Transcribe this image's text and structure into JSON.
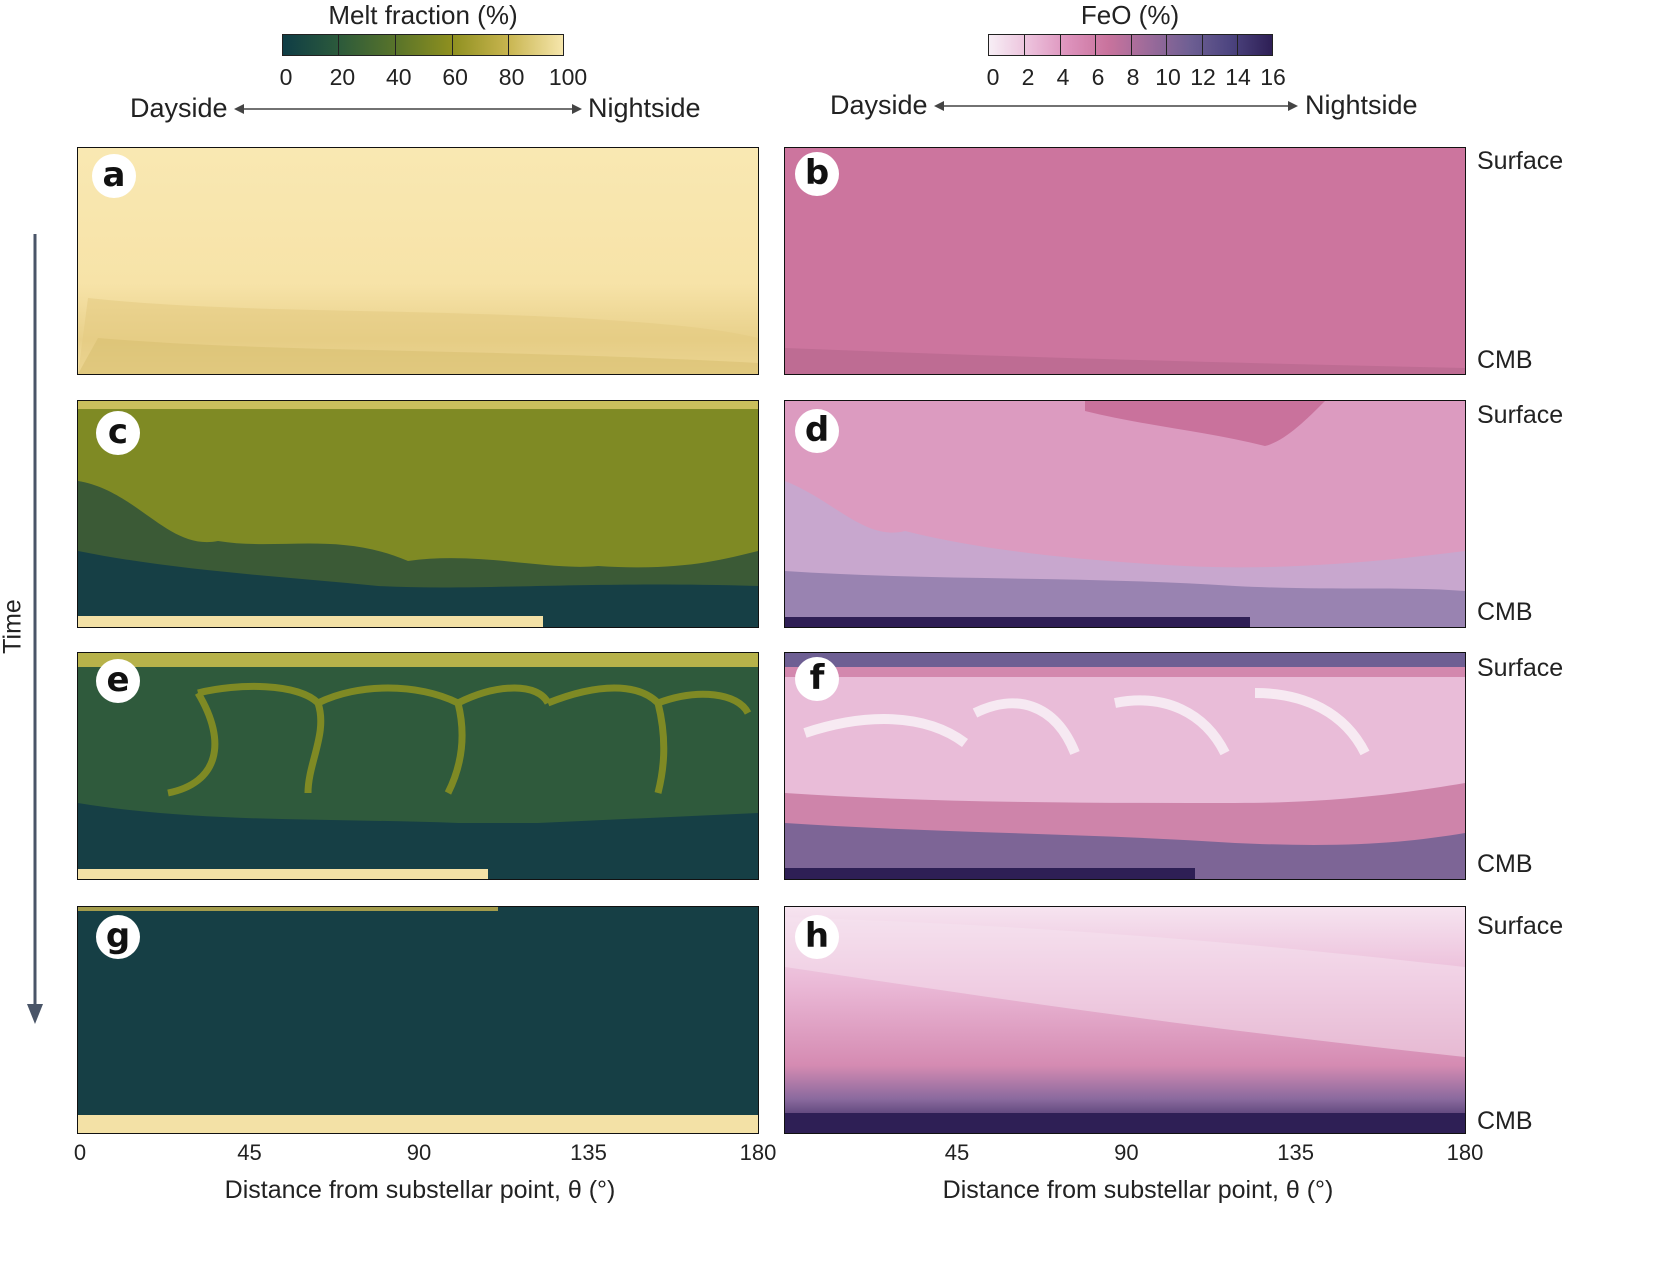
{
  "melt_colorbar": {
    "title": "Melt fraction (%)",
    "ticks": [
      "0",
      "20",
      "40",
      "60",
      "80",
      "100"
    ],
    "colors": [
      "#0f3d46",
      "#2c5a3b",
      "#58732a",
      "#8d8f1f",
      "#c7b44e",
      "#f6e6ac"
    ]
  },
  "feo_colorbar": {
    "title": "FeO (%)",
    "ticks": [
      "0",
      "2",
      "4",
      "6",
      "8",
      "10",
      "12",
      "14",
      "16"
    ],
    "colors": [
      "#f7eef5",
      "#ecc1dc",
      "#dd92bc",
      "#c9739d",
      "#9a6a9a",
      "#6e5f93",
      "#4d4580",
      "#2e1f55"
    ]
  },
  "direction": {
    "dayside": "Dayside",
    "nightside": "Nightside"
  },
  "time_label": "Time",
  "panels": {
    "a": "a",
    "b": "b",
    "c": "c",
    "d": "d",
    "e": "e",
    "f": "f",
    "g": "g",
    "h": "h"
  },
  "row_labels": {
    "surface": "Surface",
    "cmb": "CMB"
  },
  "x_axis": {
    "left_ticks": [
      "0",
      "45",
      "90",
      "135",
      "180"
    ],
    "right_ticks": [
      "45",
      "90",
      "135",
      "180"
    ],
    "label": "Distance from substellar point, θ (°)"
  }
}
